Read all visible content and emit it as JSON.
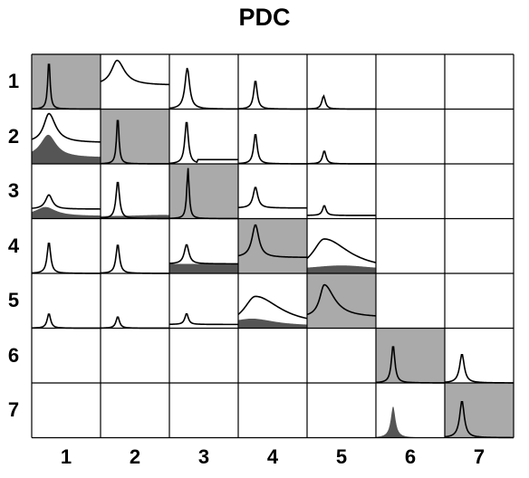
{
  "chart_data": {
    "type": "small-multiples",
    "title": "PDC",
    "rows": [
      "1",
      "2",
      "3",
      "4",
      "5",
      "6",
      "7"
    ],
    "cols": [
      "1",
      "2",
      "3",
      "4",
      "5",
      "6",
      "7"
    ],
    "x_range": [
      0,
      1
    ],
    "y_range": [
      0,
      1
    ],
    "diagonal_fill": "#aaaaaa",
    "filled_color": "#555555",
    "cells": [
      {
        "r": 0,
        "c": 0,
        "diag": true,
        "line": {
          "center": 0.25,
          "width": 0.02,
          "height": 0.95,
          "base": 0.0
        }
      },
      {
        "r": 0,
        "c": 1,
        "line": {
          "center": 0.24,
          "width": 0.1,
          "height": 0.92,
          "base": 0.45,
          "shape": "broad"
        }
      },
      {
        "r": 0,
        "c": 2,
        "line": {
          "center": 0.26,
          "width": 0.04,
          "height": 0.78,
          "base": 0.0
        }
      },
      {
        "r": 0,
        "c": 3,
        "line": {
          "center": 0.25,
          "width": 0.03,
          "height": 0.55,
          "base": 0.0
        }
      },
      {
        "r": 0,
        "c": 4,
        "line": {
          "center": 0.24,
          "width": 0.03,
          "height": 0.25,
          "base": 0.0
        }
      },
      {
        "r": 1,
        "c": 0,
        "line": {
          "center": 0.25,
          "width": 0.09,
          "height": 0.95,
          "base": 0.4,
          "shape": "broad"
        },
        "filled": {
          "center": 0.24,
          "width": 0.14,
          "height": 0.55,
          "base": 0.12
        }
      },
      {
        "r": 1,
        "c": 1,
        "diag": true,
        "line": {
          "center": 0.25,
          "width": 0.02,
          "height": 0.92,
          "base": 0.0
        }
      },
      {
        "r": 1,
        "c": 2,
        "line": {
          "center": 0.25,
          "width": 0.03,
          "height": 0.82,
          "base": 0.0,
          "tail": 0.08
        }
      },
      {
        "r": 1,
        "c": 3,
        "line": {
          "center": 0.25,
          "width": 0.03,
          "height": 0.58,
          "base": 0.0
        }
      },
      {
        "r": 1,
        "c": 4,
        "line": {
          "center": 0.25,
          "width": 0.03,
          "height": 0.25,
          "base": 0.0
        }
      },
      {
        "r": 2,
        "c": 0,
        "line": {
          "center": 0.25,
          "width": 0.06,
          "height": 0.45,
          "base": 0.18
        },
        "filled": {
          "center": 0.2,
          "width": 0.18,
          "height": 0.22,
          "base": 0.05
        }
      },
      {
        "r": 2,
        "c": 1,
        "line": {
          "center": 0.25,
          "width": 0.03,
          "height": 0.72,
          "base": 0.0
        },
        "filled": {
          "center": 0.9,
          "width": 0.5,
          "height": 0.07,
          "base": 0.04
        }
      },
      {
        "r": 2,
        "c": 2,
        "diag": true,
        "line": {
          "center": 0.27,
          "width": 0.02,
          "height": 0.96,
          "base": 0.0
        }
      },
      {
        "r": 2,
        "c": 3,
        "line": {
          "center": 0.25,
          "width": 0.04,
          "height": 0.6,
          "base": 0.2
        }
      },
      {
        "r": 2,
        "c": 4,
        "line": {
          "center": 0.25,
          "width": 0.03,
          "height": 0.25,
          "base": 0.06
        }
      },
      {
        "r": 3,
        "c": 0,
        "line": {
          "center": 0.25,
          "width": 0.03,
          "height": 0.6,
          "base": 0.0
        }
      },
      {
        "r": 3,
        "c": 1,
        "line": {
          "center": 0.25,
          "width": 0.03,
          "height": 0.56,
          "base": 0.0
        }
      },
      {
        "r": 3,
        "c": 2,
        "line": {
          "center": 0.25,
          "width": 0.04,
          "height": 0.55,
          "base": 0.18
        },
        "filled": {
          "center": 0.5,
          "width": 2.0,
          "height": 0.18,
          "base": 0.18
        }
      },
      {
        "r": 3,
        "c": 3,
        "diag": true,
        "line": {
          "center": 0.25,
          "width": 0.06,
          "height": 0.92,
          "base": 0.3
        }
      },
      {
        "r": 3,
        "c": 4,
        "line": {
          "center": 0.25,
          "width": 0.2,
          "height": 0.65,
          "base": 0.05,
          "shape": "skew"
        },
        "filled": {
          "center": 0.5,
          "width": 0.6,
          "height": 0.15,
          "base": 0.05
        }
      },
      {
        "r": 4,
        "c": 0,
        "line": {
          "center": 0.25,
          "width": 0.03,
          "height": 0.28,
          "base": 0.0
        }
      },
      {
        "r": 4,
        "c": 1,
        "line": {
          "center": 0.25,
          "width": 0.03,
          "height": 0.22,
          "base": 0.0
        }
      },
      {
        "r": 4,
        "c": 2,
        "line": {
          "center": 0.25,
          "width": 0.03,
          "height": 0.28,
          "base": 0.07
        }
      },
      {
        "r": 4,
        "c": 3,
        "line": {
          "center": 0.25,
          "width": 0.2,
          "height": 0.6,
          "base": 0.04,
          "shape": "skew"
        },
        "filled": {
          "center": 0.2,
          "width": 0.4,
          "height": 0.18,
          "base": 0.04
        }
      },
      {
        "r": 4,
        "c": 4,
        "diag": true,
        "line": {
          "center": 0.25,
          "width": 0.08,
          "height": 0.82,
          "base": 0.2,
          "shape": "skew"
        }
      },
      {
        "r": 5,
        "c": 5,
        "diag": true,
        "line": {
          "center": 0.25,
          "width": 0.03,
          "height": 0.72,
          "base": 0.0
        }
      },
      {
        "r": 5,
        "c": 6,
        "line": {
          "center": 0.25,
          "width": 0.04,
          "height": 0.55,
          "base": 0.0
        }
      },
      {
        "r": 6,
        "c": 5,
        "filled": {
          "center": 0.25,
          "width": 0.04,
          "height": 0.6,
          "base": 0.0
        }
      },
      {
        "r": 6,
        "c": 6,
        "diag": true,
        "line": {
          "center": 0.25,
          "width": 0.04,
          "height": 0.7,
          "base": 0.0
        }
      }
    ]
  }
}
